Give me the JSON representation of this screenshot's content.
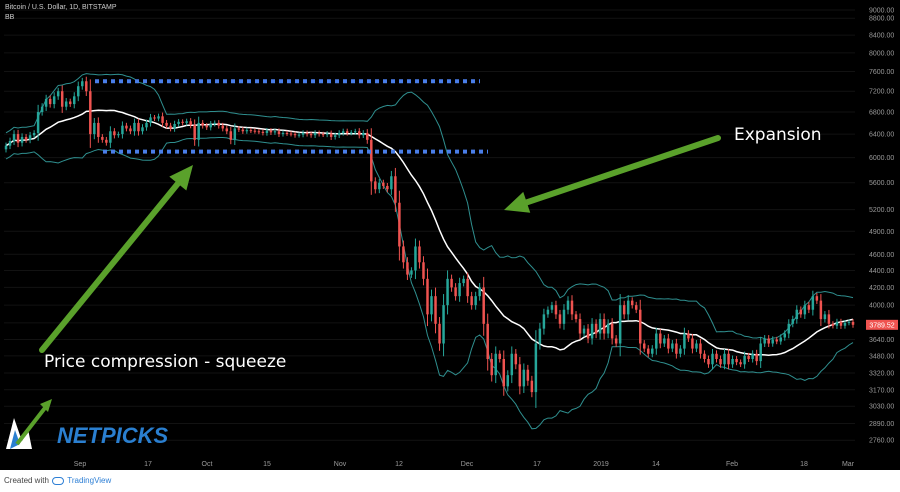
{
  "header": {
    "title": "Bitcoin / U.S. Dollar, 1D, BITSTAMP",
    "indicator": "BB"
  },
  "annotations": {
    "expansion": "Expansion",
    "squeeze": "Price compression - squeeze"
  },
  "logo": {
    "text": "NETPICKS"
  },
  "footer": {
    "created_with": "Created with",
    "brand": "TradingView"
  },
  "colors": {
    "background": "#000000",
    "candle_up": "#26a69a",
    "candle_down": "#ef5350",
    "basis": "#ffffff",
    "bands": "#2f8f8f",
    "dotted_lines": "#4a7ee8",
    "arrows": "#5aa12b",
    "last_price_label": "#ef5350",
    "logo_blue": "#2a7fd0"
  },
  "chart_data": {
    "type": "candlestick",
    "symbol": "Bitcoin / U.S. Dollar",
    "interval": "1D",
    "exchange": "BITSTAMP",
    "indicator": "Bollinger Bands",
    "x_tick_labels": [
      "Sep",
      "17",
      "Oct",
      "15",
      "Nov",
      "12",
      "Dec",
      "17",
      "2019",
      "14",
      "Feb",
      "18",
      "Mar"
    ],
    "y_tick_labels": [
      "2760.00",
      "2890.00",
      "3030.00",
      "3170.00",
      "3320.00",
      "3480.00",
      "3640.00",
      "3810.00",
      "4000.00",
      "4200.00",
      "4400.00",
      "4600.00",
      "4900.00",
      "5200.00",
      "5600.00",
      "6000.00",
      "6400.00",
      "6800.00",
      "7200.00",
      "7600.00",
      "8000.00",
      "8400.00",
      "8800.00",
      "9000.00"
    ],
    "y_tick_values": [
      2760,
      2890,
      3030,
      3170,
      3320,
      3480,
      3640,
      3810,
      4000,
      4200,
      4400,
      4600,
      4900,
      5200,
      5600,
      6000,
      6400,
      6800,
      7200,
      7600,
      8000,
      8400,
      8800,
      9000
    ],
    "ylim": [
      2650,
      9100
    ],
    "y_scale": "log",
    "last_price": {
      "value": 3789.52,
      "label": "3789.52"
    },
    "resistance_level": 7400,
    "support_level": 6100,
    "closes": [
      6200,
      6280,
      6400,
      6250,
      6350,
      6300,
      6380,
      6420,
      6800,
      6900,
      7050,
      6950,
      7100,
      7200,
      6900,
      7000,
      6950,
      7100,
      7300,
      7400,
      7200,
      6400,
      6600,
      6350,
      6300,
      6250,
      6450,
      6380,
      6400,
      6550,
      6500,
      6450,
      6600,
      6450,
      6520,
      6600,
      6700,
      6680,
      6720,
      6600,
      6550,
      6500,
      6580,
      6620,
      6600,
      6630,
      6560,
      6300,
      6600,
      6550,
      6520,
      6580,
      6600,
      6550,
      6500,
      6450,
      6300,
      6500,
      6480,
      6450,
      6470,
      6460,
      6450,
      6440,
      6420,
      6460,
      6430,
      6450,
      6400,
      6420,
      6410,
      6400,
      6380,
      6390,
      6420,
      6400,
      6380,
      6420,
      6400,
      6390,
      6410,
      6350,
      6380,
      6420,
      6450,
      6420,
      6430,
      6450,
      6380,
      6420,
      6300,
      5620,
      5500,
      5600,
      5550,
      5500,
      5700,
      5300,
      4700,
      4500,
      4350,
      4400,
      4700,
      4500,
      4300,
      3900,
      4100,
      3800,
      3600,
      4000,
      4300,
      4200,
      4100,
      4250,
      4300,
      4100,
      4000,
      4100,
      4200,
      3800,
      3450,
      3300,
      3500,
      3450,
      3200,
      3300,
      3500,
      3400,
      3200,
      3350,
      3250,
      3150,
      3600,
      3750,
      3900,
      3950,
      4000,
      3900,
      3800,
      3950,
      4050,
      3900,
      3850,
      3700,
      3750,
      3650,
      3800,
      3700,
      3850,
      3700,
      3800,
      3650,
      3600,
      4000,
      3900,
      4050,
      4000,
      3950,
      3600,
      3550,
      3500,
      3550,
      3700,
      3600,
      3650,
      3550,
      3600,
      3500,
      3550,
      3700,
      3650,
      3550,
      3600,
      3500,
      3450,
      3400,
      3500,
      3450,
      3400,
      3500,
      3400,
      3450,
      3420,
      3400,
      3480,
      3450,
      3500,
      3430,
      3600,
      3650,
      3600,
      3640,
      3620,
      3660,
      3700,
      3800,
      3850,
      3950,
      3900,
      4000,
      3950,
      4100,
      4050,
      3850,
      3900,
      3800,
      3780,
      3820,
      3780,
      3810,
      3820,
      3789.52
    ]
  }
}
